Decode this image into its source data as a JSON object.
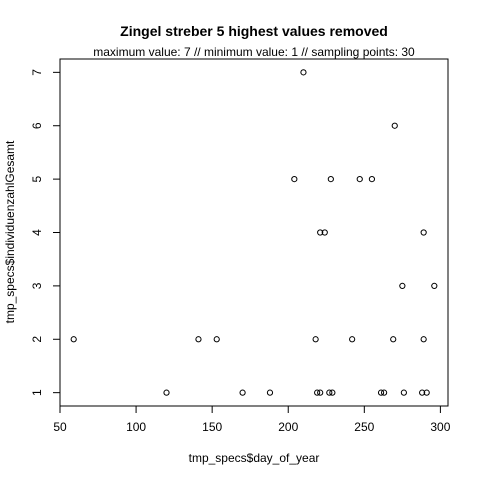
{
  "chart_data": {
    "type": "scatter",
    "title": "Zingel streber  5 highest values removed",
    "subtitle": "maximum value: 7  //  minimum value: 1  // sampling points: 30",
    "xlabel": "tmp_specs$day_of_year",
    "ylabel": "tmp_specs$individuenzahlGesamt",
    "xlim": [
      50,
      305
    ],
    "ylim": [
      0.75,
      7.25
    ],
    "xticks": [
      50,
      100,
      150,
      200,
      250,
      300
    ],
    "yticks": [
      1,
      2,
      3,
      4,
      5,
      6,
      7
    ],
    "points": [
      {
        "x": 59,
        "y": 2
      },
      {
        "x": 120,
        "y": 1
      },
      {
        "x": 141,
        "y": 2
      },
      {
        "x": 153,
        "y": 2
      },
      {
        "x": 170,
        "y": 1
      },
      {
        "x": 188,
        "y": 1
      },
      {
        "x": 204,
        "y": 5
      },
      {
        "x": 210,
        "y": 7
      },
      {
        "x": 218,
        "y": 2
      },
      {
        "x": 219,
        "y": 1
      },
      {
        "x": 221,
        "y": 1
      },
      {
        "x": 221,
        "y": 4
      },
      {
        "x": 224,
        "y": 4
      },
      {
        "x": 227,
        "y": 1
      },
      {
        "x": 228,
        "y": 5
      },
      {
        "x": 229,
        "y": 1
      },
      {
        "x": 242,
        "y": 2
      },
      {
        "x": 247,
        "y": 5
      },
      {
        "x": 255,
        "y": 5
      },
      {
        "x": 261,
        "y": 1
      },
      {
        "x": 263,
        "y": 1
      },
      {
        "x": 269,
        "y": 2
      },
      {
        "x": 270,
        "y": 6
      },
      {
        "x": 275,
        "y": 3
      },
      {
        "x": 276,
        "y": 1
      },
      {
        "x": 288,
        "y": 1
      },
      {
        "x": 289,
        "y": 2
      },
      {
        "x": 289,
        "y": 4
      },
      {
        "x": 291,
        "y": 1
      },
      {
        "x": 296,
        "y": 3
      }
    ],
    "grid": false,
    "legend": "none",
    "marker": "open-circle",
    "colors": {
      "mark": "#000000",
      "background": "#ffffff"
    }
  }
}
